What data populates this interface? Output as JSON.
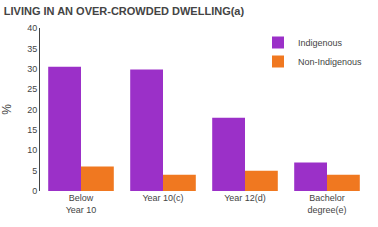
{
  "chart_data": {
    "type": "bar",
    "title": "LIVING IN AN OVER-CROWDED DWELLING(a)",
    "ylabel": "%",
    "categories": [
      "Below\nYear 10",
      "Year 10(c)",
      "Year 12(d)",
      "Bachelor\ndegree(e)"
    ],
    "series": [
      {
        "name": "Indigenous",
        "color": "#9B30C8",
        "values": [
          30.5,
          29.8,
          18.0,
          7.0
        ]
      },
      {
        "name": "Non-Indigenous",
        "color": "#F07820",
        "values": [
          6.0,
          4.0,
          5.0,
          4.0
        ]
      }
    ],
    "ylim": [
      0,
      40
    ],
    "yticks": [
      0,
      5,
      10,
      15,
      20,
      25,
      30,
      35,
      40
    ],
    "grid": false,
    "legend": "upper right"
  }
}
